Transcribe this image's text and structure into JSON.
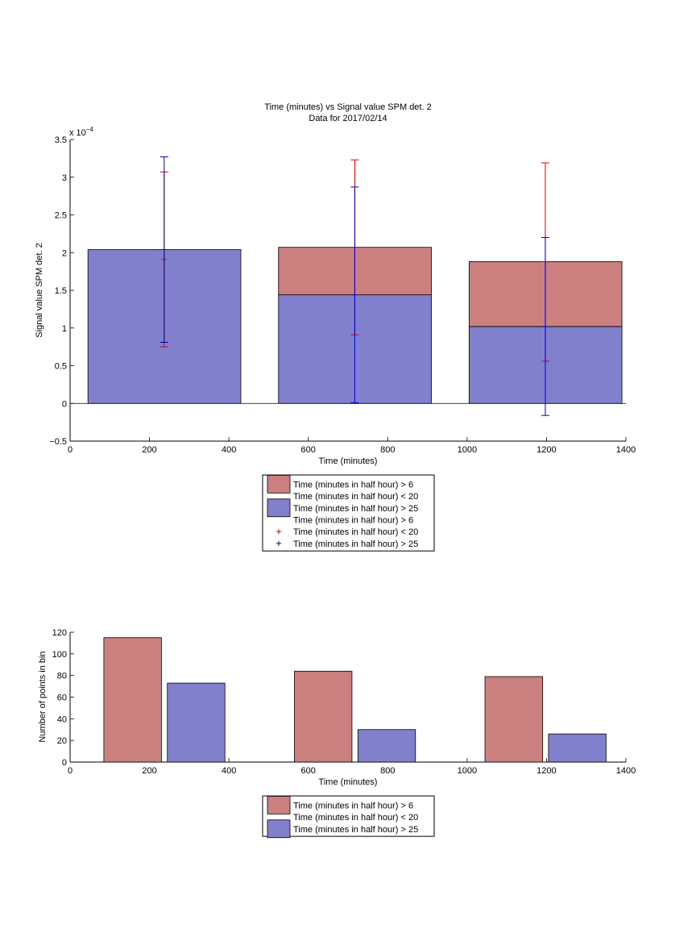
{
  "chart_data": [
    {
      "type": "bar",
      "title": "Time (minutes) vs Signal value SPM det. 2",
      "subtitle": "Data for 2017/02/14",
      "xlabel": "Time (minutes)",
      "ylabel": "Signal value SPM det. 2",
      "y_exponent_label": "x 10",
      "y_exponent_power": "−4",
      "xlim": [
        0,
        1400
      ],
      "ylim": [
        -0.5,
        3.5
      ],
      "xticks": [
        "0",
        "200",
        "400",
        "600",
        "800",
        "1000",
        "1200",
        "1400"
      ],
      "yticks": [
        "−0.5",
        "0",
        "0.5",
        "1",
        "1.5",
        "2",
        "2.5",
        "3",
        "3.5"
      ],
      "grid": false,
      "stacked": true,
      "bars": [
        {
          "x_start": 45,
          "x_end": 430,
          "blue": 2.04,
          "red": 0.0
        },
        {
          "x_start": 525,
          "x_end": 910,
          "blue": 1.44,
          "red": 0.63
        },
        {
          "x_start": 1005,
          "x_end": 1390,
          "blue": 1.02,
          "red": 0.86
        }
      ],
      "colors": {
        "red": "#cc7f7f",
        "blue": "#8080cc",
        "red_err": "#dd0000",
        "blue_err": "#0000cc"
      },
      "errorbars": {
        "red": [
          {
            "x": 237,
            "center": 1.91,
            "low": 0.75,
            "high": 3.07
          },
          {
            "x": 717,
            "center": 2.07,
            "low": 0.91,
            "high": 3.23
          },
          {
            "x": 1197,
            "center": 1.88,
            "low": 0.56,
            "high": 3.19
          }
        ],
        "blue": [
          {
            "x": 237,
            "center": 2.04,
            "low": 0.81,
            "high": 3.27
          },
          {
            "x": 717,
            "center": 1.44,
            "low": 0.01,
            "high": 2.87
          },
          {
            "x": 1197,
            "center": 1.02,
            "low": -0.16,
            "high": 2.2
          }
        ]
      },
      "legend": {
        "placement": "below",
        "entries": [
          {
            "swatch": "red-patch",
            "label": "Time (minutes in half hour) > 6"
          },
          {
            "swatch": "none",
            "label": "Time (minutes in half hour) < 20"
          },
          {
            "swatch": "blue-patch",
            "label": "Time (minutes in half hour) > 25"
          },
          {
            "swatch": "none",
            "label": "Time (minutes in half hour) > 6"
          },
          {
            "swatch": "red-plus",
            "label": "Time (minutes in half hour) < 20"
          },
          {
            "swatch": "blue-plus",
            "label": "Time (minutes in half hour) > 25"
          }
        ]
      }
    },
    {
      "type": "bar",
      "xlabel": "Time (minutes)",
      "ylabel": "Number of points in bin",
      "xlim": [
        0,
        1400
      ],
      "ylim": [
        0,
        120
      ],
      "xticks": [
        "0",
        "200",
        "400",
        "600",
        "800",
        "1000",
        "1200",
        "1400"
      ],
      "yticks": [
        "0",
        "20",
        "40",
        "60",
        "80",
        "100",
        "120"
      ],
      "grid": false,
      "bars": [
        {
          "series": "red",
          "x_start": 85,
          "x_end": 230,
          "value": 115
        },
        {
          "series": "blue",
          "x_start": 245,
          "x_end": 390,
          "value": 73
        },
        {
          "series": "red",
          "x_start": 565,
          "x_end": 710,
          "value": 84
        },
        {
          "series": "blue",
          "x_start": 725,
          "x_end": 870,
          "value": 30
        },
        {
          "series": "red",
          "x_start": 1045,
          "x_end": 1190,
          "value": 79
        },
        {
          "series": "blue",
          "x_start": 1205,
          "x_end": 1350,
          "value": 26
        }
      ],
      "colors": {
        "red": "#cc7f7f",
        "blue": "#8080cc"
      },
      "legend": {
        "placement": "below",
        "entries": [
          {
            "swatch": "red-patch",
            "label": "Time (minutes in half hour) > 6"
          },
          {
            "swatch": "none",
            "label": "Time (minutes in half hour) < 20"
          },
          {
            "swatch": "blue-patch",
            "label": "Time (minutes in half hour) > 25"
          }
        ]
      }
    }
  ]
}
